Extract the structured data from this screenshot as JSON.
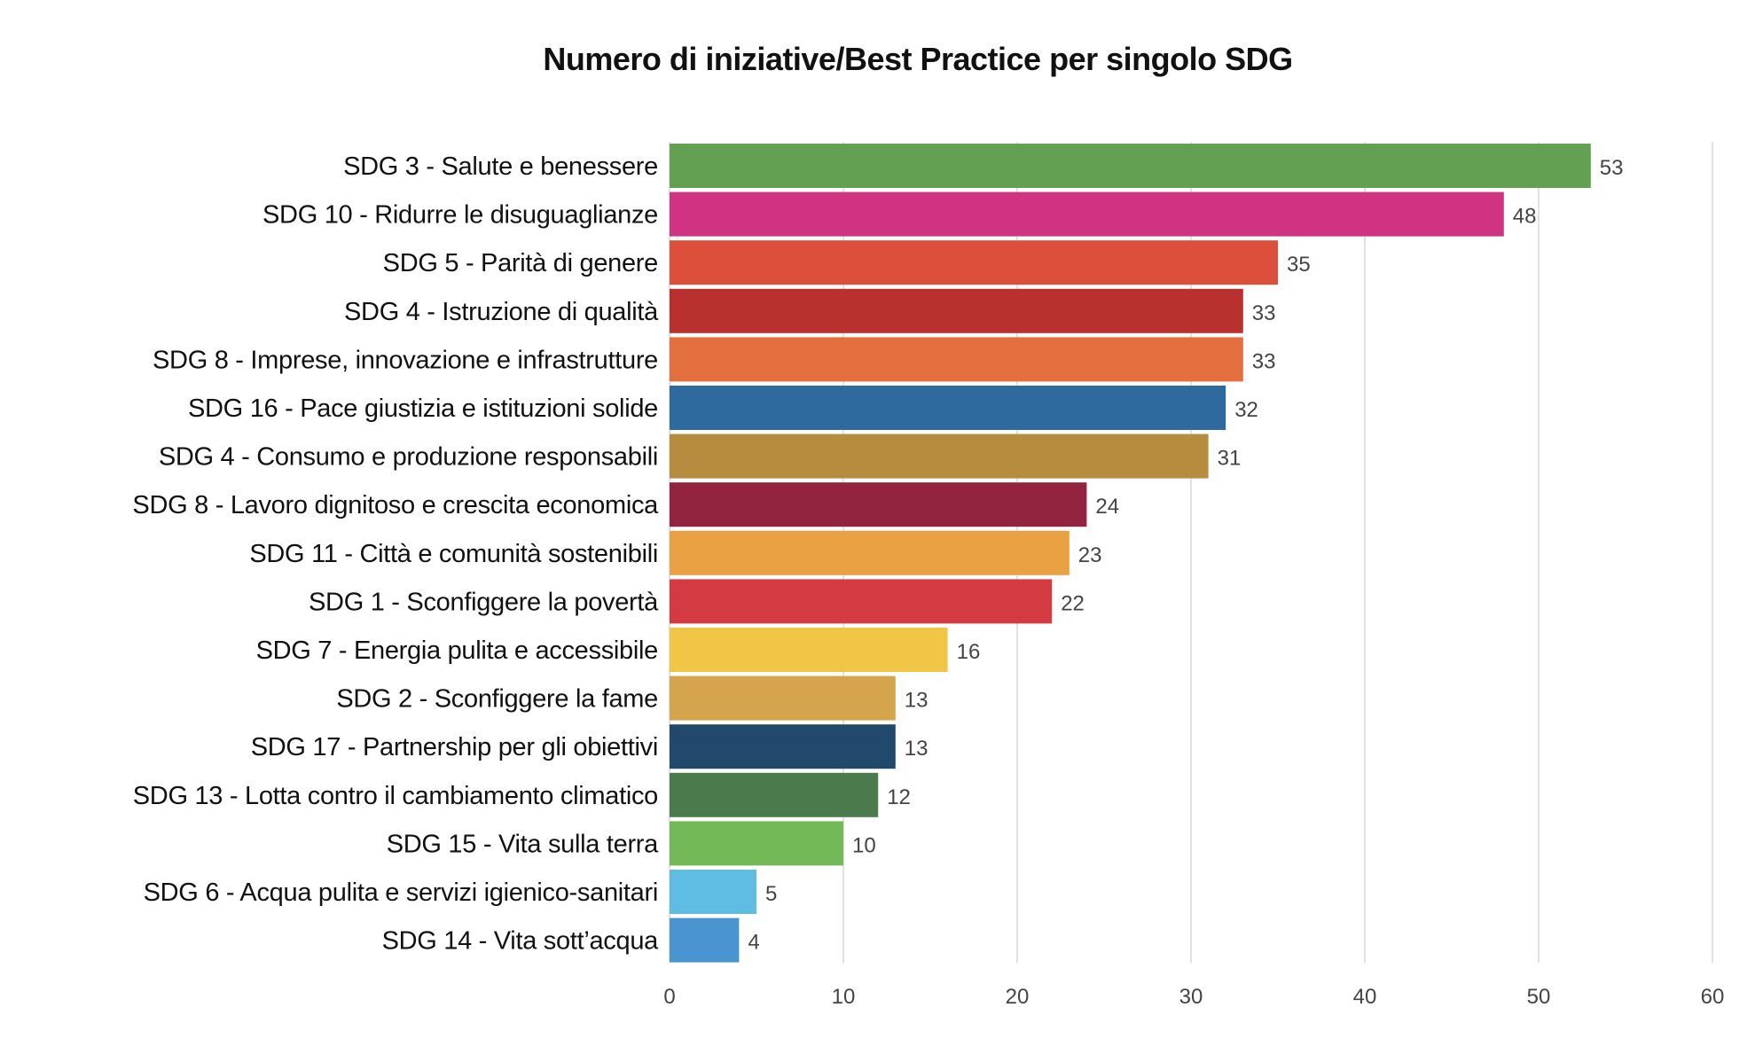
{
  "chart_data": {
    "type": "bar",
    "orientation": "horizontal",
    "title": "Numero di iniziative/Best Practice per singolo SDG",
    "categories": [
      "SDG 3 - Salute e benessere",
      "SDG 10 - Ridurre le disuguaglianze",
      "SDG 5 - Parità di genere",
      "SDG 4 - Istruzione di qualità",
      "SDG 8 - Imprese, innovazione e infrastrutture",
      "SDG 16 - Pace giustizia e istituzioni solide",
      "SDG 4 - Consumo e produzione responsabili",
      "SDG 8 - Lavoro dignitoso e crescita economica",
      "SDG 11 - Città e comunità sostenibili",
      "SDG 1 - Sconfiggere la povertà",
      "SDG 7 - Energia pulita e accessibile",
      "SDG 2 - Sconfiggere la fame",
      "SDG 17 - Partnership per gli obiettivi",
      "SDG 13 - Lotta contro il cambiamento climatico",
      "SDG 15 - Vita sulla terra",
      "SDG 6 - Acqua pulita e servizi igienico-sanitari",
      "SDG 14 - Vita sott’acqua"
    ],
    "values": [
      53,
      48,
      35,
      33,
      33,
      32,
      31,
      24,
      23,
      22,
      16,
      13,
      13,
      12,
      10,
      5,
      4
    ],
    "colors": [
      "#63a052",
      "#cf3382",
      "#dc4f3a",
      "#b8312f",
      "#e26f3d",
      "#2e6a9d",
      "#b68d3e",
      "#93243f",
      "#e9a143",
      "#d33a42",
      "#f1c545",
      "#d5a54d",
      "#21496b",
      "#4b7b4c",
      "#74b957",
      "#5fbde3",
      "#4a94cf"
    ],
    "xlim": [
      0,
      60
    ],
    "xticks": [
      0,
      10,
      20,
      30,
      40,
      50,
      60
    ],
    "xlabel": "",
    "ylabel": "",
    "grid": "vertical",
    "legend": "none",
    "data_labels": true
  }
}
